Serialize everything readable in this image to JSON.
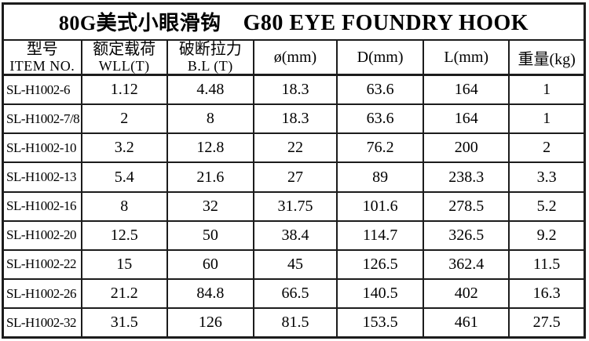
{
  "title": {
    "cn": "80G美式小眼滑钩",
    "en": "G80 EYE FOUNDRY HOOK"
  },
  "table": {
    "columns": [
      {
        "cn": "型号",
        "en": "ITEM NO."
      },
      {
        "cn": "额定载荷",
        "en": "WLL(T)"
      },
      {
        "cn": "破断拉力",
        "en": "B.L (T)"
      },
      {
        "label": "ø(mm)"
      },
      {
        "label": "D(mm)"
      },
      {
        "label": "L(mm)"
      },
      {
        "label": "重量(kg)"
      }
    ],
    "rows": [
      {
        "item": "SL-H1002-6",
        "wll": "1.12",
        "bl": "4.48",
        "dia": "18.3",
        "d": "63.6",
        "l": "164",
        "wt": "1"
      },
      {
        "item": "SL-H1002-7/8",
        "wll": "2",
        "bl": "8",
        "dia": "18.3",
        "d": "63.6",
        "l": "164",
        "wt": "1"
      },
      {
        "item": "SL-H1002-10",
        "wll": "3.2",
        "bl": "12.8",
        "dia": "22",
        "d": "76.2",
        "l": "200",
        "wt": "2"
      },
      {
        "item": "SL-H1002-13",
        "wll": "5.4",
        "bl": "21.6",
        "dia": "27",
        "d": "89",
        "l": "238.3",
        "wt": "3.3"
      },
      {
        "item": "SL-H1002-16",
        "wll": "8",
        "bl": "32",
        "dia": "31.75",
        "d": "101.6",
        "l": "278.5",
        "wt": "5.2"
      },
      {
        "item": "SL-H1002-20",
        "wll": "12.5",
        "bl": "50",
        "dia": "38.4",
        "d": "114.7",
        "l": "326.5",
        "wt": "9.2"
      },
      {
        "item": "SL-H1002-22",
        "wll": "15",
        "bl": "60",
        "dia": "45",
        "d": "126.5",
        "l": "362.4",
        "wt": "11.5"
      },
      {
        "item": "SL-H1002-26",
        "wll": "21.2",
        "bl": "84.8",
        "dia": "66.5",
        "d": "140.5",
        "l": "402",
        "wt": "16.3"
      },
      {
        "item": "SL-H1002-32",
        "wll": "31.5",
        "bl": "126",
        "dia": "81.5",
        "d": "153.5",
        "l": "461",
        "wt": "27.5"
      }
    ]
  },
  "colors": {
    "border": "#1c1c1c",
    "text": "#000000",
    "background": "#ffffff"
  }
}
